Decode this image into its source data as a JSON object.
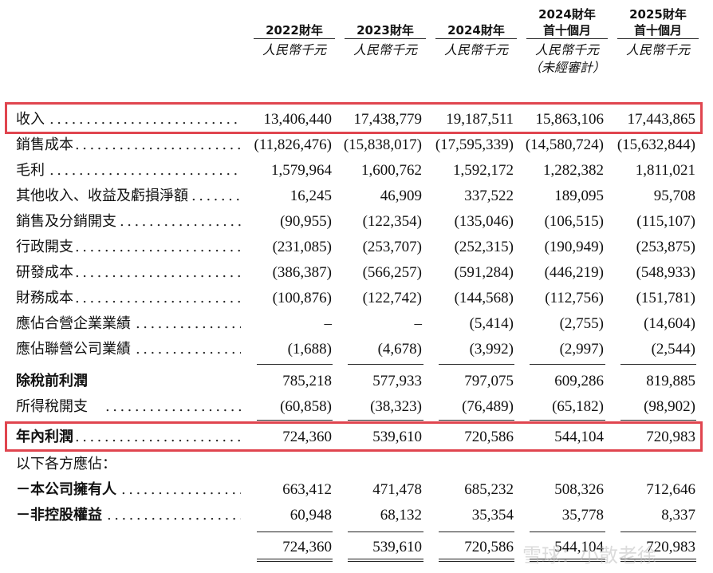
{
  "headers": [
    {
      "line1": "",
      "line2": "2022財年",
      "unit": "人民幣千元",
      "note": ""
    },
    {
      "line1": "",
      "line2": "2023財年",
      "unit": "人民幣千元",
      "note": ""
    },
    {
      "line1": "",
      "line2": "2024財年",
      "unit": "人民幣千元",
      "note": ""
    },
    {
      "line1": "2024財年",
      "line2": "首十個月",
      "unit": "人民幣千元",
      "note": "（未經審計）"
    },
    {
      "line1": "2025財年",
      "line2": "首十個月",
      "unit": "人民幣千元",
      "note": ""
    }
  ],
  "rows": [
    {
      "label": "收入",
      "values": [
        "13,406,440",
        "17,438,779",
        "19,187,511",
        "15,863,106",
        "17,443,865"
      ]
    },
    {
      "label": "銷售成本",
      "values": [
        "(11,826,476)",
        "(15,838,017)",
        "(17,595,339)",
        "(14,580,724)",
        "(15,632,844)"
      ]
    },
    {
      "label": "毛利",
      "values": [
        "1,579,964",
        "1,600,762",
        "1,592,172",
        "1,282,382",
        "1,811,021"
      ]
    },
    {
      "label": "其他收入、收益及虧損淨額",
      "values": [
        "16,245",
        "46,909",
        "337,522",
        "189,095",
        "95,708"
      ]
    },
    {
      "label": "銷售及分銷開支",
      "values": [
        "(90,955)",
        "(122,354)",
        "(135,046)",
        "(106,515)",
        "(115,107)"
      ]
    },
    {
      "label": "行政開支",
      "values": [
        "(231,085)",
        "(253,707)",
        "(252,315)",
        "(190,949)",
        "(253,875)"
      ]
    },
    {
      "label": "研發成本",
      "values": [
        "(386,387)",
        "(566,257)",
        "(591,284)",
        "(446,219)",
        "(548,933)"
      ]
    },
    {
      "label": "財務成本",
      "values": [
        "(100,876)",
        "(122,742)",
        "(144,568)",
        "(112,756)",
        "(151,781)"
      ]
    },
    {
      "label": "應佔合營企業業績",
      "values": [
        "–",
        "–",
        "(5,414)",
        "(2,755)",
        "(14,604)"
      ]
    },
    {
      "label": "應佔聯營公司業績",
      "values": [
        "(1,688)",
        "(4,678)",
        "(3,992)",
        "(2,997)",
        "(2,544)"
      ]
    },
    {
      "label": "除稅前利潤",
      "values": [
        "785,218",
        "577,933",
        "797,075",
        "609,286",
        "819,885"
      ]
    },
    {
      "label": "所得稅開支",
      "values": [
        "(60,858)",
        "(38,323)",
        "(76,489)",
        "(65,182)",
        "(98,902)"
      ]
    },
    {
      "label": "年內利潤",
      "values": [
        "724,360",
        "539,610",
        "720,586",
        "544,104",
        "720,983"
      ]
    },
    {
      "label": "以下各方應佔：",
      "values": [
        "",
        "",
        "",
        "",
        ""
      ]
    },
    {
      "label": "－本公司擁有人",
      "values": [
        "663,412",
        "471,478",
        "685,232",
        "508,326",
        "712,646"
      ]
    },
    {
      "label": "－非控股權益",
      "values": [
        "60,948",
        "68,132",
        "35,354",
        "35,778",
        "8,337"
      ]
    },
    {
      "label": "",
      "values": [
        "724,360",
        "539,610",
        "720,586",
        "544,104",
        "720,983"
      ]
    }
  ],
  "dots": "..................................................",
  "watermark": "雪球：小散老徐"
}
